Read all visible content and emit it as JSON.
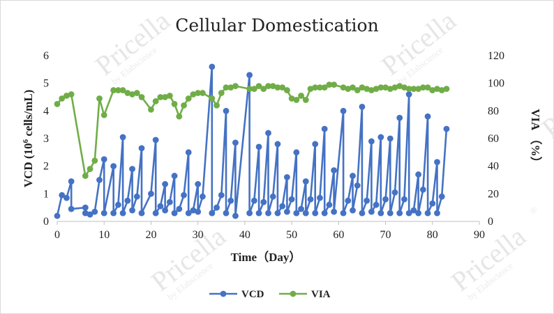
{
  "watermark": {
    "brand": "Pricella",
    "registered": "®",
    "byline": "by Elabscience"
  },
  "chart_data": {
    "type": "line",
    "title": "Cellular Domestication",
    "xlabel": "Time（Day）",
    "ylabel_left_prefix": "VCD (10",
    "ylabel_left_sup": "6",
    "ylabel_left_suffix": " cells/mL)",
    "ylabel_right": "VIA （%）",
    "xlim": [
      0,
      90
    ],
    "xticks": [
      0,
      10,
      20,
      30,
      40,
      50,
      60,
      70,
      80,
      90
    ],
    "ylim_left": [
      0,
      6
    ],
    "yticks_left": [
      0,
      1,
      2,
      3,
      4,
      5,
      6
    ],
    "ylim_right": [
      0,
      120
    ],
    "yticks_right": [
      0,
      20,
      40,
      60,
      80,
      100,
      120
    ],
    "grid": false,
    "legend_position": "bottom",
    "series": [
      {
        "name": "VCD",
        "axis": "left",
        "color": "#4472C4",
        "points": [
          [
            0,
            0.2
          ],
          [
            1,
            0.95
          ],
          [
            2,
            0.85
          ],
          [
            3,
            1.45
          ],
          [
            3,
            0.45
          ],
          [
            6,
            0.5
          ],
          [
            6,
            0.3
          ],
          [
            7,
            0.25
          ],
          [
            8,
            0.35
          ],
          [
            9,
            1.5
          ],
          [
            10,
            2.25
          ],
          [
            10,
            0.3
          ],
          [
            12,
            2.0
          ],
          [
            12,
            0.3
          ],
          [
            13,
            0.6
          ],
          [
            14,
            3.05
          ],
          [
            14,
            0.3
          ],
          [
            15,
            0.75
          ],
          [
            16,
            1.9
          ],
          [
            16,
            0.4
          ],
          [
            17,
            0.9
          ],
          [
            18,
            2.65
          ],
          [
            18,
            0.3
          ],
          [
            20,
            1.0
          ],
          [
            21,
            2.95
          ],
          [
            21,
            0.3
          ],
          [
            22,
            0.55
          ],
          [
            23,
            1.35
          ],
          [
            23,
            0.4
          ],
          [
            24,
            0.7
          ],
          [
            25,
            1.65
          ],
          [
            25,
            0.3
          ],
          [
            26,
            0.45
          ],
          [
            27,
            0.95
          ],
          [
            28,
            2.5
          ],
          [
            28,
            0.3
          ],
          [
            29,
            0.4
          ],
          [
            30,
            1.35
          ],
          [
            30,
            0.35
          ],
          [
            31,
            0.9
          ],
          [
            33,
            5.6
          ],
          [
            33,
            0.3
          ],
          [
            34,
            0.5
          ],
          [
            35,
            0.95
          ],
          [
            36,
            4.0
          ],
          [
            36,
            0.3
          ],
          [
            37,
            0.75
          ],
          [
            38,
            2.85
          ],
          [
            38,
            0.2
          ],
          [
            41,
            5.3
          ],
          [
            41,
            0.3
          ],
          [
            42,
            0.75
          ],
          [
            43,
            2.7
          ],
          [
            43,
            0.3
          ],
          [
            44,
            0.7
          ],
          [
            45,
            3.2
          ],
          [
            45,
            0.3
          ],
          [
            46,
            0.9
          ],
          [
            47,
            2.8
          ],
          [
            47,
            0.3
          ],
          [
            48,
            0.55
          ],
          [
            49,
            1.6
          ],
          [
            49,
            0.35
          ],
          [
            50,
            0.8
          ],
          [
            51,
            2.5
          ],
          [
            51,
            0.3
          ],
          [
            52,
            0.45
          ],
          [
            53,
            1.45
          ],
          [
            53,
            0.3
          ],
          [
            54,
            0.8
          ],
          [
            55,
            2.8
          ],
          [
            55,
            0.3
          ],
          [
            56,
            0.85
          ],
          [
            57,
            3.35
          ],
          [
            57,
            0.3
          ],
          [
            58,
            0.6
          ],
          [
            59,
            1.85
          ],
          [
            59,
            0.35
          ],
          [
            61,
            4.0
          ],
          [
            61,
            0.3
          ],
          [
            62,
            0.75
          ],
          [
            63,
            1.65
          ],
          [
            63,
            0.4
          ],
          [
            64,
            1.3
          ],
          [
            65,
            4.15
          ],
          [
            65,
            0.3
          ],
          [
            66,
            0.75
          ],
          [
            67,
            2.9
          ],
          [
            67,
            0.35
          ],
          [
            68,
            0.6
          ],
          [
            69,
            3.05
          ],
          [
            69,
            0.3
          ],
          [
            70,
            0.8
          ],
          [
            71,
            3.0
          ],
          [
            71,
            0.3
          ],
          [
            72,
            1.05
          ],
          [
            73,
            3.75
          ],
          [
            73,
            0.3
          ],
          [
            74,
            0.8
          ],
          [
            75,
            4.6
          ],
          [
            75,
            0.3
          ],
          [
            76,
            0.4
          ],
          [
            77,
            1.7
          ],
          [
            77,
            0.3
          ],
          [
            78,
            1.15
          ],
          [
            79,
            3.8
          ],
          [
            79,
            0.3
          ],
          [
            80,
            0.65
          ],
          [
            81,
            2.15
          ],
          [
            81,
            0.3
          ],
          [
            82,
            0.9
          ],
          [
            83,
            3.35
          ]
        ]
      },
      {
        "name": "VIA",
        "axis": "right",
        "color": "#70AD47",
        "points": [
          [
            0,
            85
          ],
          [
            1,
            89
          ],
          [
            2,
            91
          ],
          [
            3,
            92
          ],
          [
            6,
            33
          ],
          [
            7,
            38
          ],
          [
            8,
            44
          ],
          [
            9,
            89
          ],
          [
            10,
            77
          ],
          [
            12,
            95
          ],
          [
            13,
            95
          ],
          [
            14,
            95
          ],
          [
            15,
            93
          ],
          [
            16,
            92
          ],
          [
            17,
            93
          ],
          [
            18,
            90
          ],
          [
            20,
            81
          ],
          [
            21,
            87
          ],
          [
            22,
            90
          ],
          [
            23,
            90
          ],
          [
            24,
            91
          ],
          [
            25,
            85
          ],
          [
            26,
            76
          ],
          [
            27,
            84
          ],
          [
            28,
            89
          ],
          [
            29,
            92
          ],
          [
            30,
            93
          ],
          [
            31,
            93
          ],
          [
            33,
            89
          ],
          [
            34,
            84
          ],
          [
            35,
            93
          ],
          [
            36,
            97
          ],
          [
            37,
            97
          ],
          [
            38,
            98
          ],
          [
            41,
            96
          ],
          [
            42,
            96
          ],
          [
            43,
            98
          ],
          [
            44,
            96
          ],
          [
            45,
            98
          ],
          [
            46,
            98
          ],
          [
            47,
            97
          ],
          [
            48,
            97
          ],
          [
            49,
            95
          ],
          [
            50,
            89
          ],
          [
            51,
            88
          ],
          [
            52,
            91
          ],
          [
            53,
            88
          ],
          [
            54,
            96
          ],
          [
            55,
            97
          ],
          [
            56,
            97
          ],
          [
            57,
            97
          ],
          [
            58,
            99
          ],
          [
            59,
            99
          ],
          [
            61,
            97
          ],
          [
            62,
            96
          ],
          [
            63,
            97
          ],
          [
            64,
            95
          ],
          [
            65,
            97
          ],
          [
            66,
            96
          ],
          [
            67,
            95
          ],
          [
            68,
            96
          ],
          [
            69,
            97
          ],
          [
            70,
            97
          ],
          [
            71,
            96
          ],
          [
            72,
            97
          ],
          [
            73,
            98
          ],
          [
            74,
            97
          ],
          [
            75,
            96
          ],
          [
            76,
            96
          ],
          [
            77,
            96
          ],
          [
            78,
            97
          ],
          [
            79,
            97
          ],
          [
            80,
            95
          ],
          [
            81,
            96
          ],
          [
            82,
            95
          ],
          [
            83,
            96
          ]
        ]
      }
    ]
  }
}
